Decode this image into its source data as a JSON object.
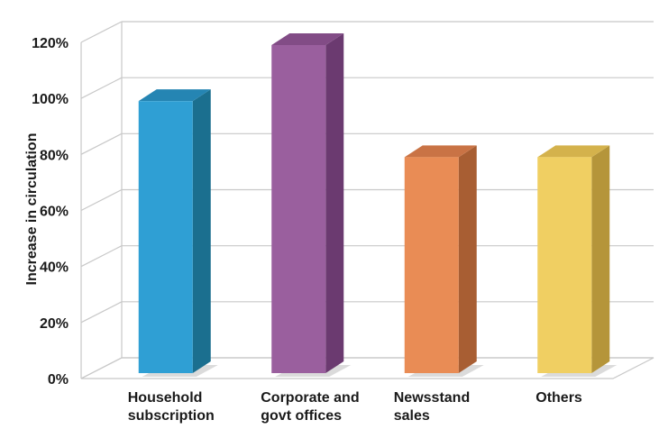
{
  "chart_data": {
    "type": "bar",
    "ylabel": "Increase in circulation",
    "categories": [
      [
        "Household",
        "subscription"
      ],
      [
        "Corporate and",
        "govt offices"
      ],
      [
        "Newsstand",
        "sales"
      ],
      [
        "Others"
      ]
    ],
    "values": [
      100,
      120,
      80,
      80
    ],
    "yticks": [
      "0%",
      "20%",
      "40%",
      "60%",
      "80%",
      "100%",
      "120%"
    ],
    "ylim": [
      0,
      120
    ],
    "grid": true,
    "colors": [
      {
        "front": "#2f9fd4",
        "side": "#1b6f8f",
        "top": "#2585b3"
      },
      {
        "front": "#9a5f9e",
        "side": "#6b3a70",
        "top": "#824c86"
      },
      {
        "front": "#e98c55",
        "side": "#a85e33",
        "top": "#c97345"
      },
      {
        "front": "#f0cf62",
        "side": "#b5953a",
        "top": "#d4b24c"
      }
    ]
  }
}
